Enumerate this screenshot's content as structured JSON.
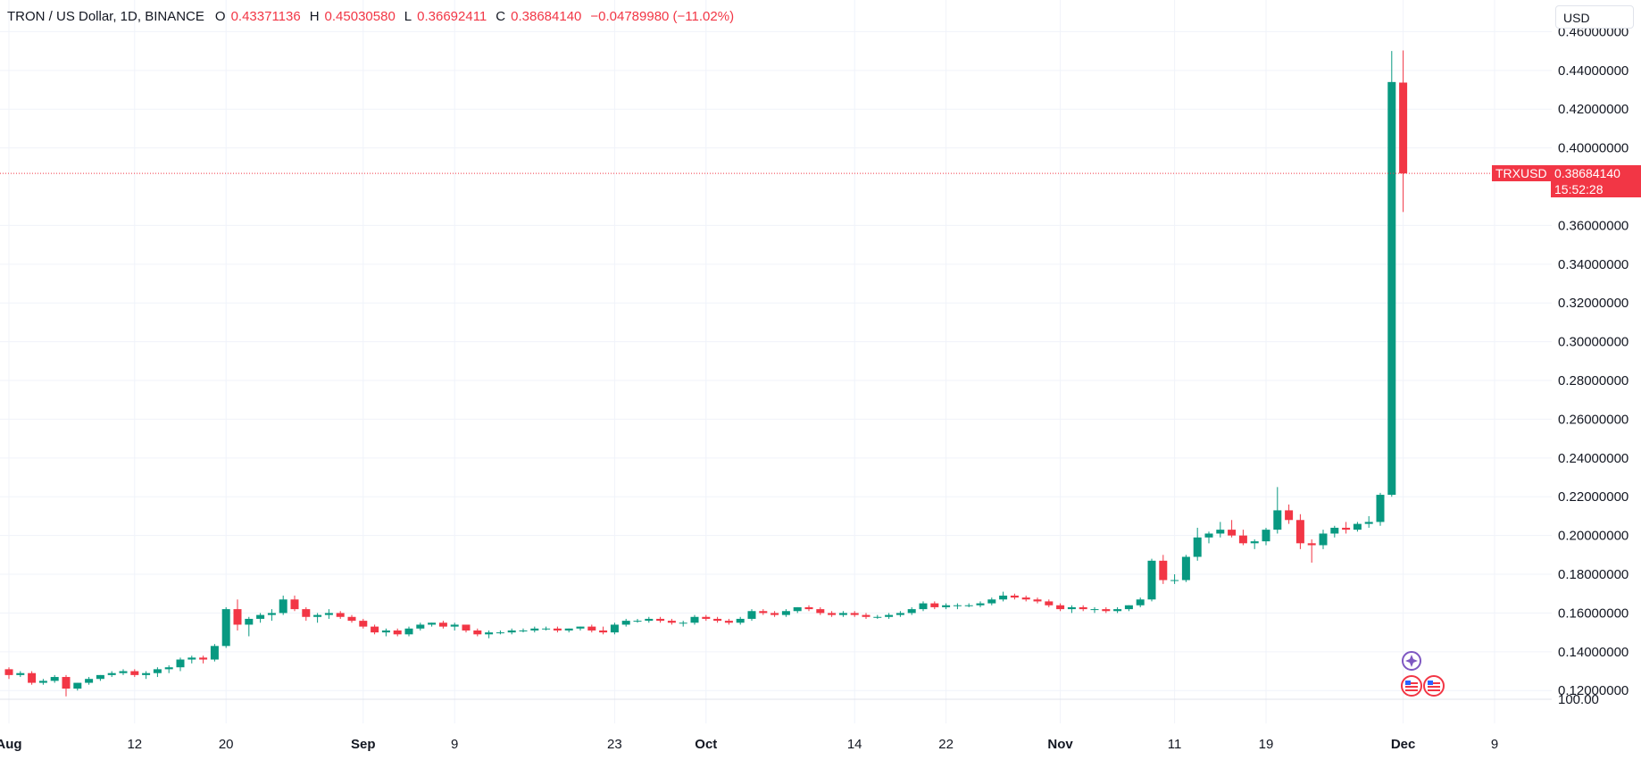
{
  "header": {
    "symbol": "TRON / US Dollar, 1D, BINANCE",
    "open_label": "O",
    "open": "0.43371136",
    "high_label": "H",
    "high": "0.45030580",
    "low_label": "L",
    "low": "0.36692411",
    "close_label": "C",
    "close": "0.38684140",
    "change": "−0.04789980 (−11.02%)"
  },
  "currency_button": "USD",
  "price_tag": {
    "symbol": "TRXUSD",
    "price": "0.38684140",
    "countdown": "15:52:28"
  },
  "colors": {
    "up": "#089981",
    "down": "#f23645",
    "grid": "#f0f3fa",
    "text": "#131722"
  },
  "chart_data": {
    "type": "candlestick",
    "title": "TRON / US Dollar, 1D, BINANCE",
    "y_axis": {
      "ticks": [
        "0.46000000",
        "0.44000000",
        "0.42000000",
        "0.40000000",
        "0.36000000",
        "0.34000000",
        "0.32000000",
        "0.30000000",
        "0.28000000",
        "0.26000000",
        "0.24000000",
        "0.22000000",
        "0.20000000",
        "0.18000000",
        "0.16000000",
        "0.14000000",
        "0.12000000"
      ],
      "range": [
        0.1155,
        0.4625
      ],
      "volume_tick": "100.00"
    },
    "x_axis": {
      "ticks": [
        {
          "label": "Aug",
          "idx": 0,
          "major": true
        },
        {
          "label": "12",
          "idx": 11,
          "major": false
        },
        {
          "label": "20",
          "idx": 19,
          "major": false
        },
        {
          "label": "Sep",
          "idx": 31,
          "major": true
        },
        {
          "label": "9",
          "idx": 39,
          "major": false
        },
        {
          "label": "23",
          "idx": 53,
          "major": false
        },
        {
          "label": "Oct",
          "idx": 61,
          "major": true
        },
        {
          "label": "14",
          "idx": 74,
          "major": false
        },
        {
          "label": "22",
          "idx": 82,
          "major": false
        },
        {
          "label": "Nov",
          "idx": 92,
          "major": true
        },
        {
          "label": "11",
          "idx": 102,
          "major": false
        },
        {
          "label": "19",
          "idx": 110,
          "major": false
        },
        {
          "label": "Dec",
          "idx": 122,
          "major": true
        },
        {
          "label": "9",
          "idx": 130,
          "major": false
        }
      ]
    },
    "grid": true,
    "ohlc": [
      [
        0.131,
        0.132,
        0.126,
        0.128
      ],
      [
        0.128,
        0.13,
        0.127,
        0.129
      ],
      [
        0.129,
        0.13,
        0.123,
        0.124
      ],
      [
        0.124,
        0.126,
        0.123,
        0.125
      ],
      [
        0.125,
        0.128,
        0.124,
        0.127
      ],
      [
        0.127,
        0.128,
        0.117,
        0.121
      ],
      [
        0.121,
        0.124,
        0.12,
        0.124
      ],
      [
        0.124,
        0.127,
        0.123,
        0.126
      ],
      [
        0.126,
        0.128,
        0.125,
        0.128
      ],
      [
        0.128,
        0.13,
        0.127,
        0.129
      ],
      [
        0.129,
        0.131,
        0.128,
        0.13
      ],
      [
        0.13,
        0.131,
        0.127,
        0.128
      ],
      [
        0.128,
        0.13,
        0.126,
        0.129
      ],
      [
        0.129,
        0.132,
        0.127,
        0.131
      ],
      [
        0.131,
        0.133,
        0.129,
        0.132
      ],
      [
        0.132,
        0.137,
        0.13,
        0.136
      ],
      [
        0.136,
        0.138,
        0.134,
        0.137
      ],
      [
        0.137,
        0.138,
        0.134,
        0.136
      ],
      [
        0.136,
        0.144,
        0.135,
        0.143
      ],
      [
        0.143,
        0.163,
        0.142,
        0.162
      ],
      [
        0.162,
        0.167,
        0.151,
        0.154
      ],
      [
        0.154,
        0.158,
        0.148,
        0.157
      ],
      [
        0.157,
        0.16,
        0.155,
        0.159
      ],
      [
        0.159,
        0.162,
        0.156,
        0.16
      ],
      [
        0.16,
        0.169,
        0.159,
        0.167
      ],
      [
        0.167,
        0.169,
        0.161,
        0.162
      ],
      [
        0.162,
        0.163,
        0.156,
        0.158
      ],
      [
        0.158,
        0.16,
        0.155,
        0.159
      ],
      [
        0.159,
        0.162,
        0.157,
        0.16
      ],
      [
        0.16,
        0.161,
        0.157,
        0.158
      ],
      [
        0.158,
        0.159,
        0.155,
        0.156
      ],
      [
        0.156,
        0.157,
        0.152,
        0.153
      ],
      [
        0.153,
        0.154,
        0.149,
        0.15
      ],
      [
        0.15,
        0.152,
        0.148,
        0.151
      ],
      [
        0.151,
        0.152,
        0.148,
        0.149
      ],
      [
        0.149,
        0.153,
        0.148,
        0.152
      ],
      [
        0.152,
        0.155,
        0.151,
        0.154
      ],
      [
        0.154,
        0.155,
        0.153,
        0.155
      ],
      [
        0.155,
        0.156,
        0.152,
        0.153
      ],
      [
        0.153,
        0.155,
        0.151,
        0.154
      ],
      [
        0.154,
        0.154,
        0.15,
        0.151
      ],
      [
        0.151,
        0.152,
        0.148,
        0.149
      ],
      [
        0.149,
        0.151,
        0.147,
        0.15
      ],
      [
        0.15,
        0.151,
        0.149,
        0.15
      ],
      [
        0.15,
        0.152,
        0.149,
        0.151
      ],
      [
        0.151,
        0.152,
        0.15,
        0.151
      ],
      [
        0.151,
        0.153,
        0.15,
        0.152
      ],
      [
        0.152,
        0.153,
        0.151,
        0.152
      ],
      [
        0.152,
        0.153,
        0.15,
        0.151
      ],
      [
        0.151,
        0.152,
        0.15,
        0.152
      ],
      [
        0.152,
        0.153,
        0.151,
        0.153
      ],
      [
        0.153,
        0.154,
        0.15,
        0.151
      ],
      [
        0.151,
        0.153,
        0.149,
        0.15
      ],
      [
        0.15,
        0.155,
        0.149,
        0.154
      ],
      [
        0.154,
        0.157,
        0.153,
        0.156
      ],
      [
        0.156,
        0.157,
        0.155,
        0.156
      ],
      [
        0.156,
        0.158,
        0.155,
        0.157
      ],
      [
        0.157,
        0.158,
        0.155,
        0.156
      ],
      [
        0.156,
        0.157,
        0.154,
        0.155
      ],
      [
        0.155,
        0.156,
        0.153,
        0.155
      ],
      [
        0.155,
        0.159,
        0.154,
        0.158
      ],
      [
        0.158,
        0.159,
        0.156,
        0.157
      ],
      [
        0.157,
        0.158,
        0.155,
        0.156
      ],
      [
        0.156,
        0.157,
        0.154,
        0.155
      ],
      [
        0.155,
        0.158,
        0.154,
        0.157
      ],
      [
        0.157,
        0.162,
        0.156,
        0.161
      ],
      [
        0.161,
        0.162,
        0.159,
        0.16
      ],
      [
        0.16,
        0.161,
        0.158,
        0.159
      ],
      [
        0.159,
        0.162,
        0.158,
        0.161
      ],
      [
        0.161,
        0.163,
        0.16,
        0.163
      ],
      [
        0.163,
        0.164,
        0.161,
        0.162
      ],
      [
        0.162,
        0.163,
        0.159,
        0.16
      ],
      [
        0.16,
        0.161,
        0.158,
        0.159
      ],
      [
        0.159,
        0.161,
        0.158,
        0.16
      ],
      [
        0.16,
        0.161,
        0.158,
        0.159
      ],
      [
        0.159,
        0.16,
        0.157,
        0.158
      ],
      [
        0.158,
        0.159,
        0.157,
        0.158
      ],
      [
        0.158,
        0.16,
        0.157,
        0.159
      ],
      [
        0.159,
        0.161,
        0.158,
        0.16
      ],
      [
        0.16,
        0.163,
        0.159,
        0.162
      ],
      [
        0.162,
        0.166,
        0.161,
        0.165
      ],
      [
        0.165,
        0.166,
        0.162,
        0.163
      ],
      [
        0.163,
        0.165,
        0.162,
        0.164
      ],
      [
        0.164,
        0.165,
        0.162,
        0.164
      ],
      [
        0.164,
        0.165,
        0.163,
        0.164
      ],
      [
        0.164,
        0.166,
        0.163,
        0.165
      ],
      [
        0.165,
        0.168,
        0.164,
        0.167
      ],
      [
        0.167,
        0.171,
        0.166,
        0.169
      ],
      [
        0.169,
        0.17,
        0.167,
        0.168
      ],
      [
        0.168,
        0.169,
        0.166,
        0.167
      ],
      [
        0.167,
        0.168,
        0.165,
        0.166
      ],
      [
        0.166,
        0.167,
        0.163,
        0.164
      ],
      [
        0.164,
        0.165,
        0.161,
        0.162
      ],
      [
        0.162,
        0.164,
        0.16,
        0.163
      ],
      [
        0.163,
        0.164,
        0.161,
        0.162
      ],
      [
        0.162,
        0.163,
        0.16,
        0.162
      ],
      [
        0.162,
        0.163,
        0.16,
        0.161
      ],
      [
        0.161,
        0.163,
        0.16,
        0.162
      ],
      [
        0.162,
        0.164,
        0.161,
        0.164
      ],
      [
        0.164,
        0.168,
        0.163,
        0.167
      ],
      [
        0.167,
        0.188,
        0.166,
        0.187
      ],
      [
        0.187,
        0.19,
        0.175,
        0.177
      ],
      [
        0.177,
        0.18,
        0.175,
        0.177
      ],
      [
        0.177,
        0.19,
        0.176,
        0.189
      ],
      [
        0.189,
        0.204,
        0.187,
        0.199
      ],
      [
        0.199,
        0.202,
        0.196,
        0.201
      ],
      [
        0.201,
        0.207,
        0.199,
        0.203
      ],
      [
        0.203,
        0.208,
        0.199,
        0.2
      ],
      [
        0.2,
        0.203,
        0.195,
        0.196
      ],
      [
        0.196,
        0.198,
        0.193,
        0.197
      ],
      [
        0.197,
        0.204,
        0.195,
        0.203
      ],
      [
        0.203,
        0.225,
        0.201,
        0.213
      ],
      [
        0.213,
        0.216,
        0.206,
        0.208
      ],
      [
        0.208,
        0.211,
        0.193,
        0.196
      ],
      [
        0.196,
        0.198,
        0.186,
        0.195
      ],
      [
        0.195,
        0.203,
        0.193,
        0.201
      ],
      [
        0.201,
        0.205,
        0.199,
        0.204
      ],
      [
        0.204,
        0.207,
        0.201,
        0.203
      ],
      [
        0.203,
        0.207,
        0.202,
        0.206
      ],
      [
        0.206,
        0.21,
        0.204,
        0.207
      ],
      [
        0.207,
        0.222,
        0.205,
        0.221
      ],
      [
        0.221,
        0.45,
        0.22,
        0.434
      ],
      [
        0.43371136,
        0.4503058,
        0.36692411,
        0.3868414
      ]
    ]
  }
}
